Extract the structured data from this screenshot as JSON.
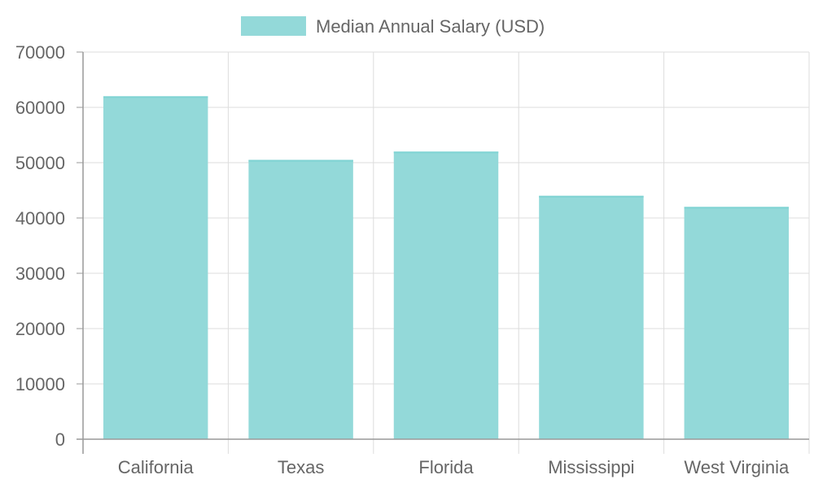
{
  "chart_data": {
    "type": "bar",
    "categories": [
      "California",
      "Texas",
      "Florida",
      "Mississippi",
      "West Virginia"
    ],
    "series": [
      {
        "name": "Median Annual Salary (USD)",
        "values": [
          62000,
          50500,
          52000,
          44000,
          42000
        ]
      }
    ],
    "xlabel": "",
    "ylabel": "",
    "ylim": [
      0,
      70000
    ],
    "yticks": [
      0,
      10000,
      20000,
      30000,
      40000,
      50000,
      60000,
      70000
    ],
    "grid": true,
    "legend": "top-center"
  },
  "colors": {
    "bar_fill": "#93d9d9",
    "bar_stroke": "#7fd3d3",
    "grid": "#dddddd",
    "axis": "#999999",
    "text": "#666666"
  }
}
